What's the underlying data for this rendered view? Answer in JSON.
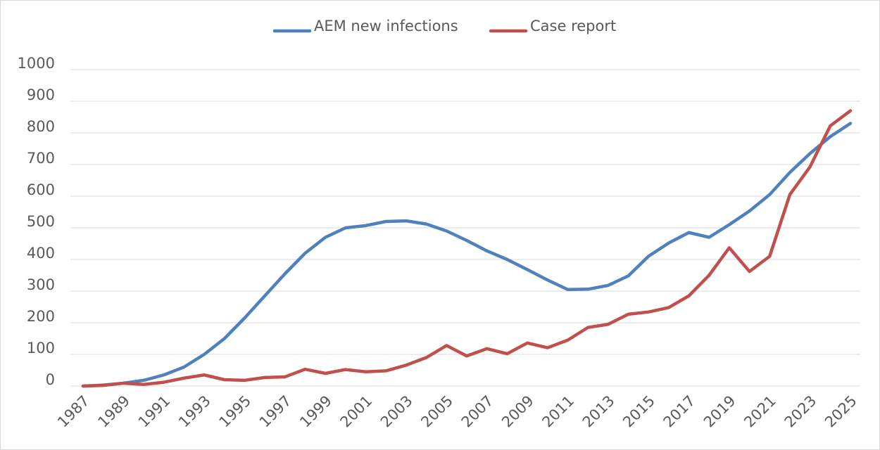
{
  "chart_data": {
    "type": "line",
    "categories": [
      "1987",
      null,
      "1989",
      null,
      "1991",
      null,
      "1993",
      null,
      "1995",
      null,
      "1997",
      null,
      "1999",
      null,
      "2001",
      null,
      "2003",
      null,
      "2005",
      null,
      "2007",
      null,
      "2009",
      null,
      "2011",
      null,
      "2013",
      null,
      "2015",
      null,
      "2017",
      null,
      "2019",
      null,
      "2021",
      null,
      "2023",
      null,
      "2025"
    ],
    "series": [
      {
        "name": "AEM new infections",
        "color": "#4f81bd",
        "values": [
          0,
          3,
          9,
          18,
          35,
          60,
          100,
          150,
          215,
          285,
          355,
          420,
          470,
          500,
          507,
          520,
          522,
          512,
          490,
          460,
          427,
          400,
          368,
          335,
          305,
          306,
          318,
          348,
          410,
          452,
          485,
          470,
          510,
          553,
          605,
          675,
          735,
          788,
          830
        ]
      },
      {
        "name": "Case report",
        "color": "#c0504d",
        "values": [
          0,
          2,
          9,
          5,
          12,
          25,
          35,
          20,
          18,
          27,
          29,
          53,
          40,
          52,
          45,
          48,
          66,
          90,
          128,
          95,
          118,
          102,
          136,
          121,
          145,
          185,
          195,
          227,
          234,
          248,
          285,
          350,
          437,
          362,
          410,
          605,
          693,
          822,
          870
        ]
      }
    ],
    "ylim": [
      0,
      1000
    ],
    "yticks": [
      0,
      100,
      200,
      300,
      400,
      500,
      600,
      700,
      800,
      900,
      1000
    ],
    "grid": true,
    "legend": "top"
  }
}
